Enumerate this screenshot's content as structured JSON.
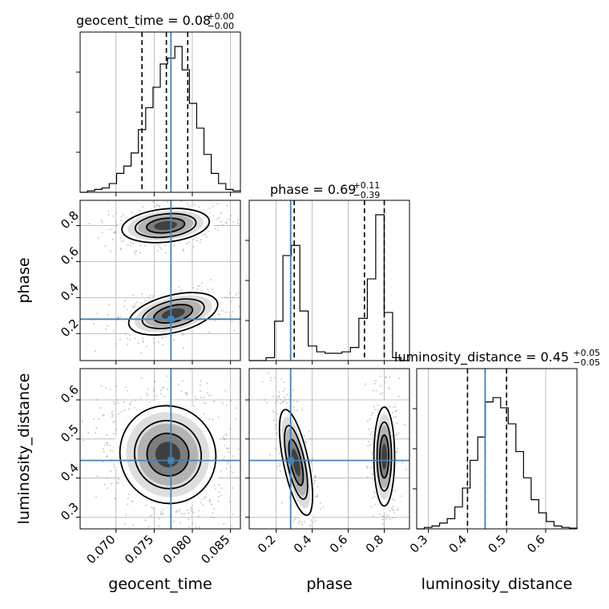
{
  "colors": {
    "truth": "#4682b4",
    "hist": "#000000",
    "grid": "#b0b0b0",
    "scatter": "#9a9a9a",
    "density": [
      "#ffffff",
      "#dcdcdc",
      "#b0b0b0",
      "#7a7a7a",
      "#3c3c3c"
    ]
  },
  "chart_data": {
    "type": "corner",
    "parameters": [
      "geocent_time",
      "phase",
      "luminosity_distance"
    ],
    "axis_labels": {
      "x": [
        "geocent_time",
        "phase",
        "luminosity_distance"
      ],
      "y": [
        "",
        "phase",
        "luminosity_distance"
      ]
    },
    "ranges": {
      "geocent_time": [
        0.0653,
        0.0863
      ],
      "phase": [
        0.05,
        0.94
      ],
      "luminosity_distance": [
        0.27,
        0.68
      ]
    },
    "ticks": {
      "geocent_time": [
        "0.070",
        "0.075",
        "0.080",
        "0.085"
      ],
      "phase": [
        "0.2",
        "0.4",
        "0.6",
        "0.8"
      ],
      "luminosity_distance": [
        "0.3",
        "0.4",
        "0.5",
        "0.6"
      ]
    },
    "grid": true,
    "titles": [
      {
        "name": "geocent_time",
        "value": "0.08",
        "plus": "+0.00",
        "minus": "−0.00"
      },
      {
        "name": "phase",
        "value": "0.69",
        "plus": "+0.11",
        "minus": "−0.39"
      },
      {
        "name": "luminosity_distance",
        "value": "0.45",
        "plus": "+0.05",
        "minus": "−0.05"
      }
    ],
    "truths": {
      "geocent_time": 0.0772,
      "phase": 0.28,
      "luminosity_distance": 0.445
    },
    "quantiles": {
      "geocent_time": [
        0.0734,
        0.0766,
        0.0794
      ],
      "phase": [
        0.3,
        0.69,
        0.8
      ],
      "luminosity_distance": [
        0.4,
        0.445,
        0.5
      ]
    },
    "histograms": {
      "geocent_time": {
        "edges_start": 0.0653,
        "edges_end": 0.0863,
        "counts": [
          0,
          0.01,
          0.02,
          0.03,
          0.06,
          0.13,
          0.18,
          0.27,
          0.43,
          0.58,
          0.72,
          0.88,
          0.92,
          1.0,
          0.84,
          0.61,
          0.44,
          0.26,
          0.13,
          0.06,
          0.02,
          0.01
        ]
      },
      "phase": {
        "edges_start": 0.05,
        "edges_end": 0.94,
        "counts": [
          0,
          0,
          0.02,
          0.27,
          0.72,
          0.79,
          0.34,
          0.1,
          0.06,
          0.05,
          0.05,
          0.06,
          0.09,
          0.29,
          0.56,
          1.0,
          0.33,
          0.02,
          0
        ]
      },
      "luminosity_distance": {
        "edges_start": 0.27,
        "edges_end": 0.68,
        "counts": [
          0,
          0.01,
          0.02,
          0.04,
          0.07,
          0.15,
          0.28,
          0.47,
          0.63,
          0.87,
          0.9,
          0.83,
          0.72,
          0.53,
          0.35,
          0.2,
          0.11,
          0.05,
          0.02,
          0.01,
          0.005
        ]
      }
    },
    "density_blobs": {
      "phase_vs_geocent_time": [
        {
          "x": 0.0765,
          "y": 0.8,
          "sx": 0.0025,
          "sy": 0.04,
          "w": 0.55,
          "rot": -6
        },
        {
          "x": 0.0775,
          "y": 0.31,
          "sx": 0.0026,
          "sy": 0.045,
          "w": 0.45,
          "rot": -14
        }
      ],
      "luminosity_distance_vs_geocent_time": [
        {
          "x": 0.0768,
          "y": 0.46,
          "sx": 0.0027,
          "sy": 0.055,
          "w": 1.0,
          "rot": -32
        }
      ],
      "luminosity_distance_vs_phase": [
        {
          "x": 0.31,
          "y": 0.44,
          "sx": 0.03,
          "sy": 0.06,
          "w": 0.5,
          "rot": -12
        },
        {
          "x": 0.8,
          "y": 0.455,
          "sx": 0.025,
          "sy": 0.055,
          "w": 0.5,
          "rot": 0
        }
      ]
    }
  }
}
